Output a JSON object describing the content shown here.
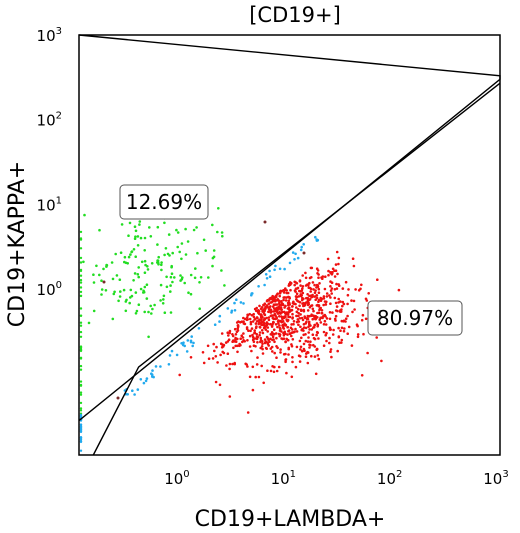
{
  "chart_data": {
    "type": "scatter",
    "title": "[CD19+]",
    "xlabel": "CD19+LAMBDA+",
    "ylabel": "CD19+KAPPA+",
    "x_scale": "log",
    "y_scale": "log",
    "xlim": [
      0.11,
      1000
    ],
    "ylim": [
      0.011,
      1000
    ],
    "x_ticks": [
      {
        "value": 1,
        "base": "10",
        "exp": "0"
      },
      {
        "value": 10,
        "base": "10",
        "exp": "1"
      },
      {
        "value": 100,
        "base": "10",
        "exp": "2"
      },
      {
        "value": 1000,
        "base": "10",
        "exp": "3"
      }
    ],
    "y_ticks": [
      {
        "value": 1,
        "base": "10",
        "exp": "0"
      },
      {
        "value": 10,
        "base": "10",
        "exp": "1"
      },
      {
        "value": 100,
        "base": "10",
        "exp": "2"
      },
      {
        "value": 1000,
        "base": "10",
        "exp": "3"
      }
    ],
    "grid": false,
    "regions": [
      {
        "name": "kappa",
        "label": "12.69%",
        "color": "#22dd22",
        "approx_center": [
          0.6,
          1.8
        ]
      },
      {
        "name": "lambda",
        "label": "80.97%",
        "color": "#ee1111",
        "approx_center": [
          8,
          0.45
        ]
      }
    ],
    "debris_color": "#22aaee",
    "gates": [
      {
        "name": "kappa-gate",
        "points": [
          [
            0.11,
            1000
          ],
          [
            1000,
            330
          ],
          [
            1000,
            300
          ],
          [
            0.11,
            0.028
          ]
        ]
      },
      {
        "name": "lambda-gate",
        "points": [
          [
            0.15,
            0.011
          ],
          [
            0.4,
            0.12
          ],
          [
            1000,
            270
          ]
        ]
      }
    ]
  }
}
